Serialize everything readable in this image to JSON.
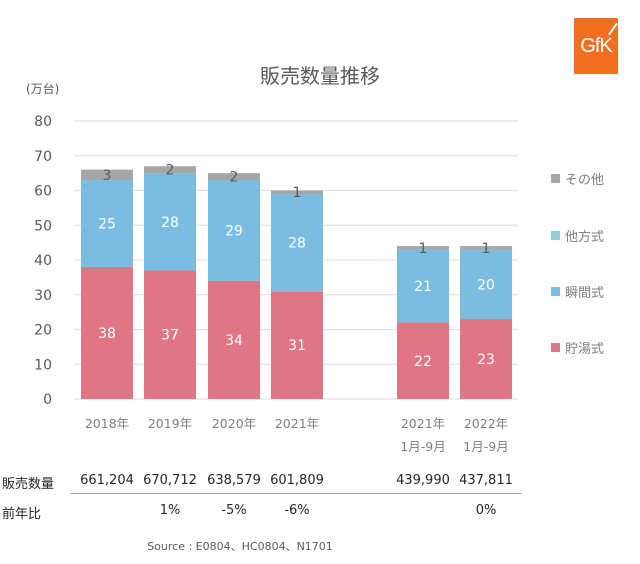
{
  "logo": {
    "text": "GfK",
    "color": "#f26f21"
  },
  "chart_data": {
    "type": "bar",
    "stacked": true,
    "title": "販売数量推移",
    "ylabel": "(万台)",
    "xlabel": "",
    "ylim": [
      0,
      80
    ],
    "yticks": [
      0,
      10,
      20,
      30,
      40,
      50,
      60,
      70,
      80
    ],
    "grid": true,
    "legend_position": "right",
    "categories": [
      {
        "line1": "2018年",
        "line2": ""
      },
      {
        "line1": "2019年",
        "line2": ""
      },
      {
        "line1": "2020年",
        "line2": ""
      },
      {
        "line1": "2021年",
        "line2": ""
      },
      {
        "line1": "2021年",
        "line2": "1月-9月"
      },
      {
        "line1": "2022年",
        "line2": "1月-9月"
      }
    ],
    "series": [
      {
        "name": "貯湯式",
        "color": "#e07585",
        "label_color": "#ffffff",
        "values": [
          38,
          37,
          34,
          31,
          22,
          23
        ]
      },
      {
        "name": "瞬間式",
        "color": "#7bbde0",
        "label_color": "#ffffff",
        "values": [
          25,
          28,
          29,
          28,
          21,
          20
        ]
      },
      {
        "name": "他方式",
        "color": "#8ecfd6",
        "label_color": "#ffffff",
        "values": [
          0,
          0,
          0,
          0,
          0,
          0
        ]
      },
      {
        "name": "その他",
        "color": "#a6a6a6",
        "label_color": "#595959",
        "values": [
          3,
          2,
          2,
          1,
          1,
          1
        ]
      }
    ],
    "legend": [
      {
        "name": "その他",
        "color": "#a6a6a6"
      },
      {
        "name": "他方式",
        "color": "#8ecfd6"
      },
      {
        "name": "瞬間式",
        "color": "#7bbde0"
      },
      {
        "name": "貯湯式",
        "color": "#e07585"
      }
    ]
  },
  "table": {
    "rows": [
      {
        "label": "販売数量",
        "values": [
          "661,204",
          "670,712",
          "638,579",
          "601,809",
          "439,990",
          "437,811"
        ]
      },
      {
        "label": "前年比",
        "values": [
          "",
          "1%",
          "-5%",
          "-6%",
          "",
          "0%"
        ]
      }
    ]
  },
  "source": "Source : E0804、HC0804、N1701"
}
